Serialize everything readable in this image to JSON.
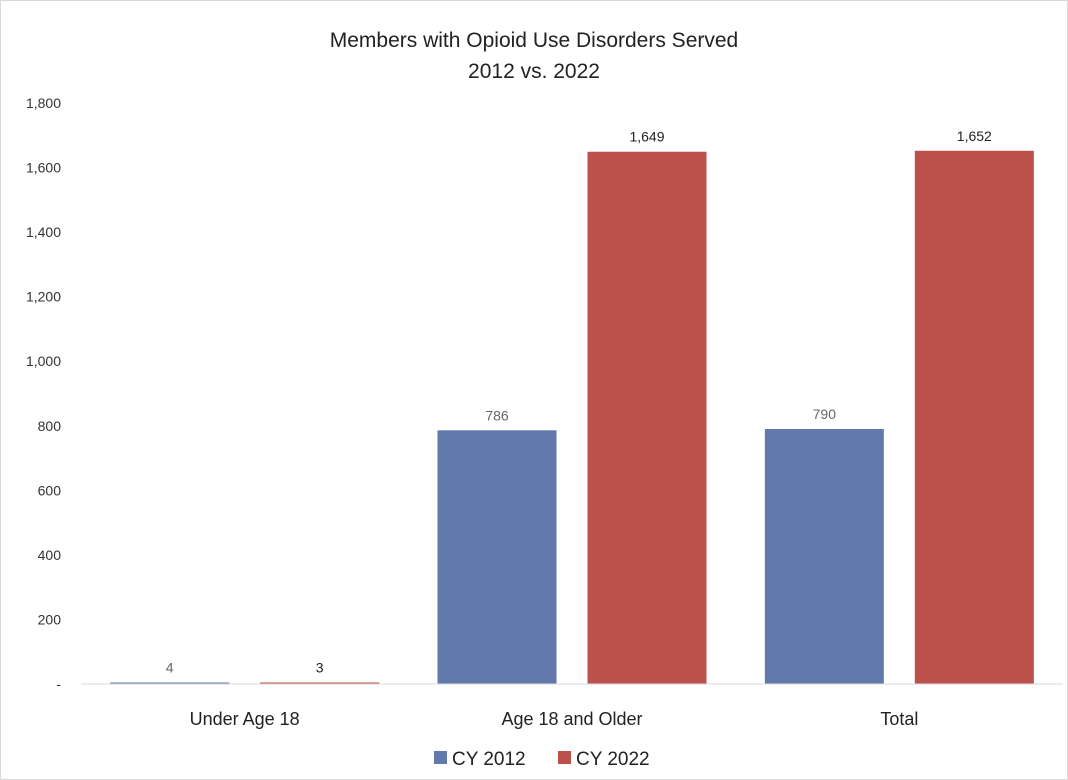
{
  "chart_data": {
    "type": "bar",
    "title": "Members with Opioid Use Disorders Served",
    "subtitle": "2012 vs. 2022",
    "categories": [
      "Under Age 18",
      "Age 18 and Older",
      "Total"
    ],
    "series": [
      {
        "name": "CY 2012",
        "color": "#6279AC",
        "values": [
          4,
          786,
          790
        ],
        "labels": [
          "4",
          "786",
          "790"
        ],
        "label_color": "#666666"
      },
      {
        "name": "CY 2022",
        "color": "#BC514B",
        "values": [
          3,
          1649,
          1652
        ],
        "labels": [
          "3",
          "1,649",
          "1,652"
        ],
        "label_color": "#222222"
      }
    ],
    "ylim": [
      0,
      1800
    ],
    "yticks": [
      {
        "value": 0,
        "label": "-"
      },
      {
        "value": 200,
        "label": "200"
      },
      {
        "value": 400,
        "label": "400"
      },
      {
        "value": 600,
        "label": "600"
      },
      {
        "value": 800,
        "label": "800"
      },
      {
        "value": 1000,
        "label": "1,000"
      },
      {
        "value": 1200,
        "label": "1,200"
      },
      {
        "value": 1400,
        "label": "1,400"
      },
      {
        "value": 1600,
        "label": "1,600"
      },
      {
        "value": 1800,
        "label": "1,800"
      }
    ],
    "grid": false,
    "legend_position": "bottom",
    "xlabel": "",
    "ylabel": ""
  }
}
